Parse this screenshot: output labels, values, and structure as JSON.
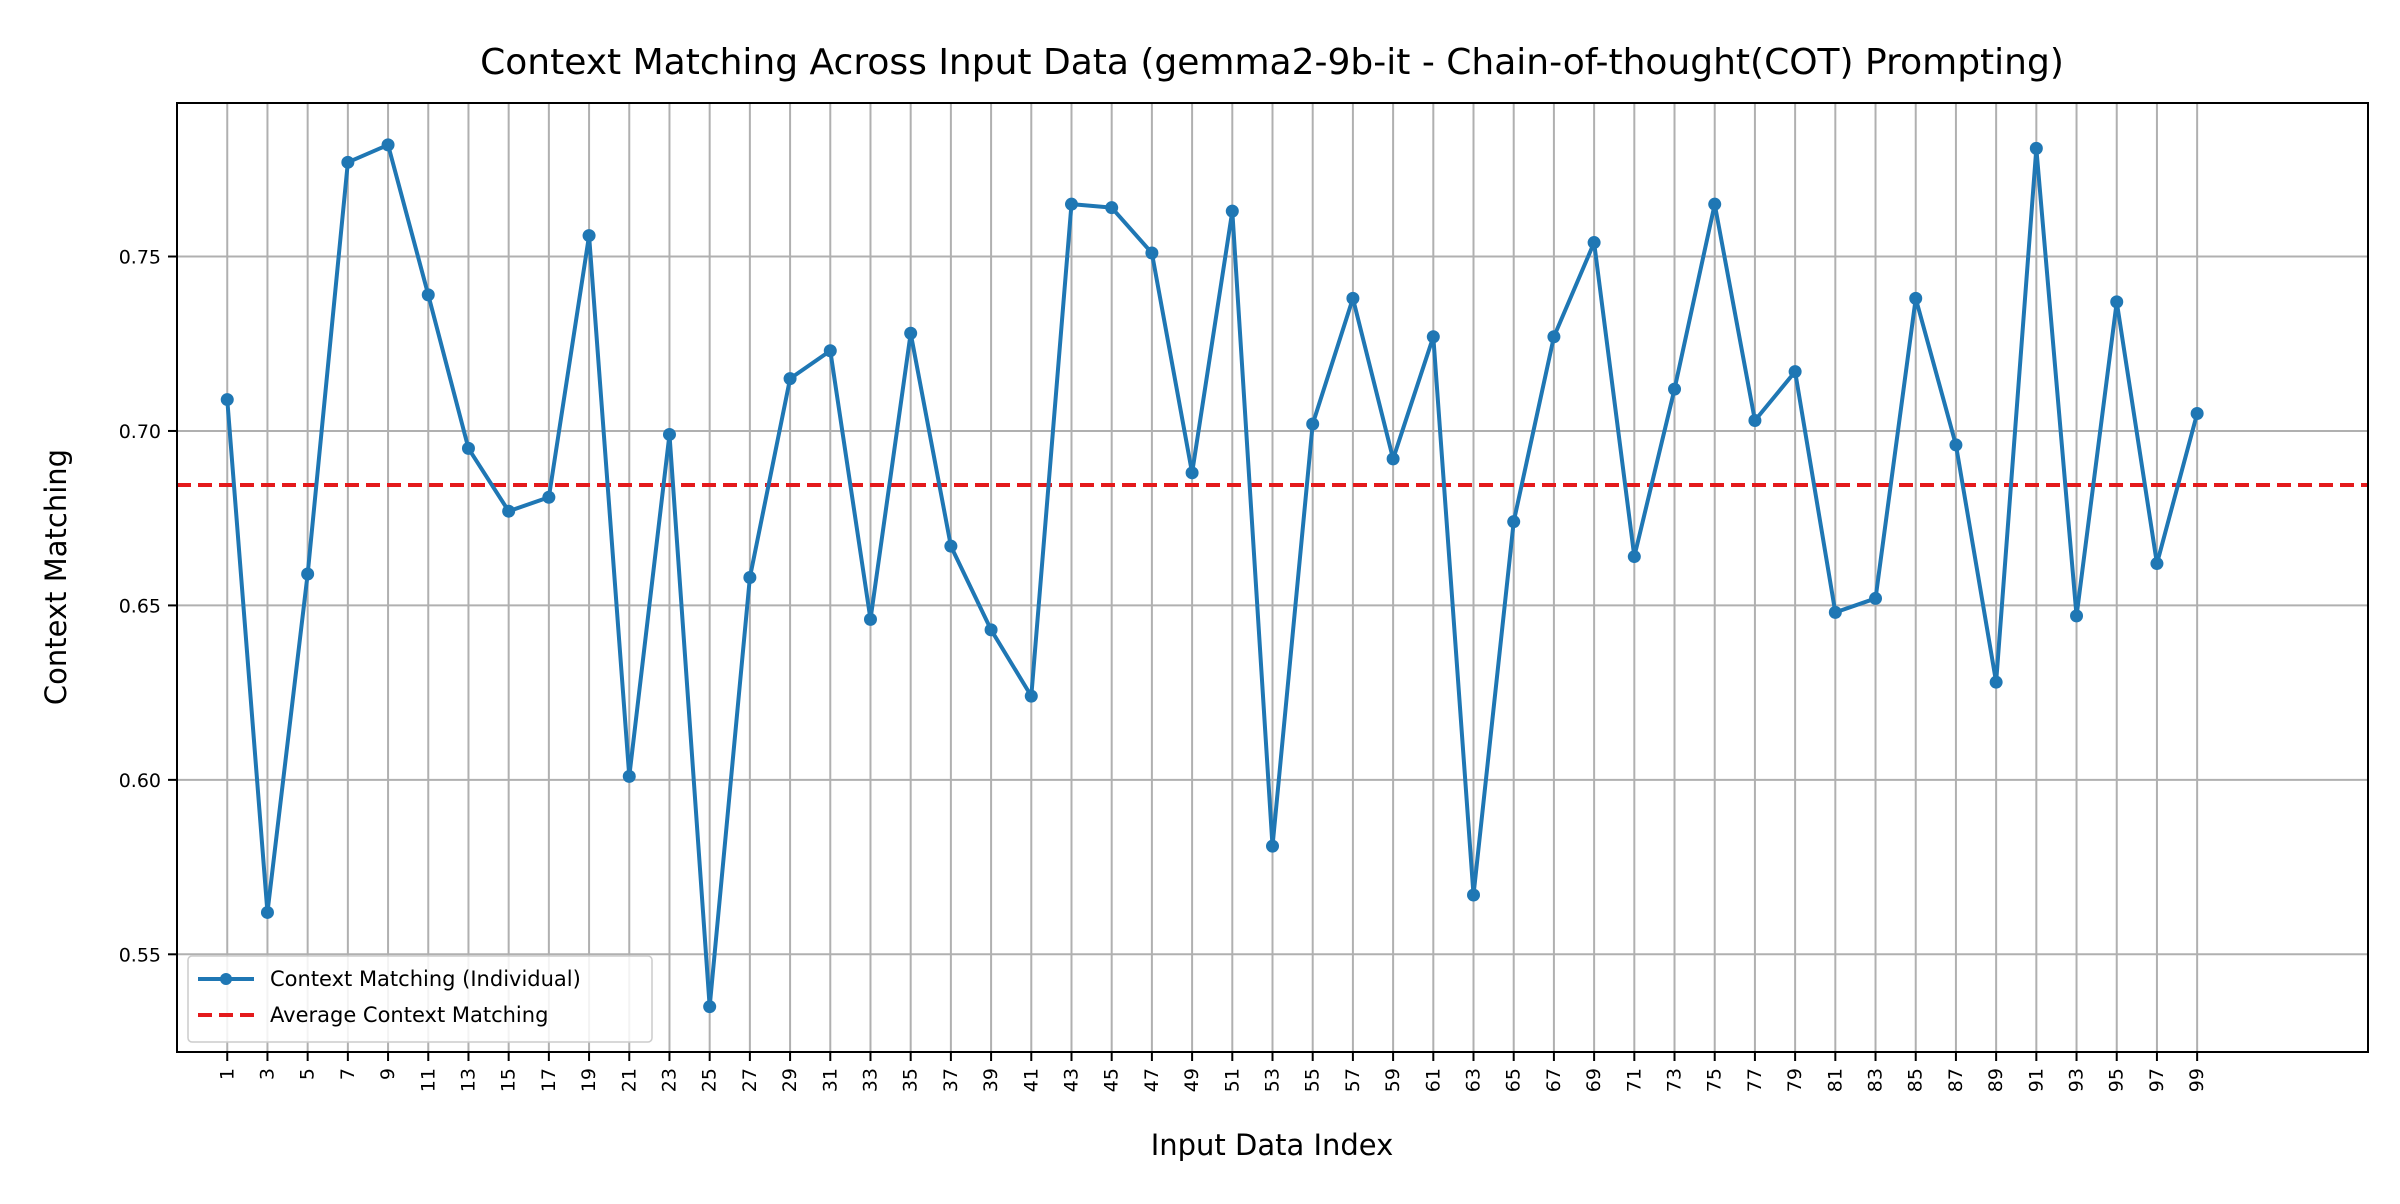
{
  "chart_data": {
    "type": "line",
    "title": "Context Matching Across Input Data (gemma2-9b-it - Chain-of-thought(COT) Prompting)",
    "xlabel": "Input Data Index",
    "ylabel": "Context Matching",
    "xlim": [
      -1.5,
      107.5
    ],
    "ylim": [
      0.522,
      0.794
    ],
    "x_ticks": [
      1,
      3,
      5,
      7,
      9,
      11,
      13,
      15,
      17,
      19,
      21,
      23,
      25,
      27,
      29,
      31,
      33,
      35,
      37,
      39,
      41,
      43,
      45,
      47,
      49,
      51,
      53,
      55,
      57,
      59,
      61,
      63,
      65,
      67,
      69,
      71,
      73,
      75,
      77,
      79,
      81,
      83,
      85,
      87,
      89,
      91,
      93,
      95,
      97,
      99
    ],
    "y_ticks": [
      0.55,
      0.6,
      0.65,
      0.7,
      0.75
    ],
    "y_tick_labels": [
      "0.55",
      "0.60",
      "0.65",
      "0.70",
      "0.75"
    ],
    "grid": true,
    "legend_position": "lower-left",
    "series": [
      {
        "name": "Context Matching (Individual)",
        "color": "#1f77b4",
        "style": "solid-with-markers",
        "x": [
          1,
          3,
          5,
          7,
          9,
          11,
          13,
          15,
          17,
          19,
          21,
          23,
          25,
          27,
          29,
          31,
          33,
          35,
          37,
          39,
          41,
          43,
          45,
          47,
          49,
          51,
          53,
          55,
          57,
          59,
          61,
          63,
          65,
          67,
          69,
          71,
          73,
          75,
          77,
          79,
          81,
          83,
          85,
          87,
          89,
          91,
          93,
          95,
          97,
          99
        ],
        "values": [
          0.709,
          0.562,
          0.659,
          0.777,
          0.782,
          0.739,
          0.695,
          0.677,
          0.681,
          0.756,
          0.601,
          0.699,
          0.535,
          0.658,
          0.715,
          0.723,
          0.646,
          0.728,
          0.667,
          0.643,
          0.624,
          0.765,
          0.764,
          0.751,
          0.688,
          0.763,
          0.581,
          0.702,
          0.738,
          0.692,
          0.727,
          0.567,
          0.674,
          0.727,
          0.754,
          0.664,
          0.712,
          0.765,
          0.703,
          0.717,
          0.648,
          0.652,
          0.738,
          0.696,
          0.628,
          0.781,
          0.647,
          0.737,
          0.662,
          0.705
        ]
      },
      {
        "name": "Average Context Matching",
        "color": "#e41a1c",
        "style": "dashed",
        "constant": 0.6845
      }
    ]
  }
}
